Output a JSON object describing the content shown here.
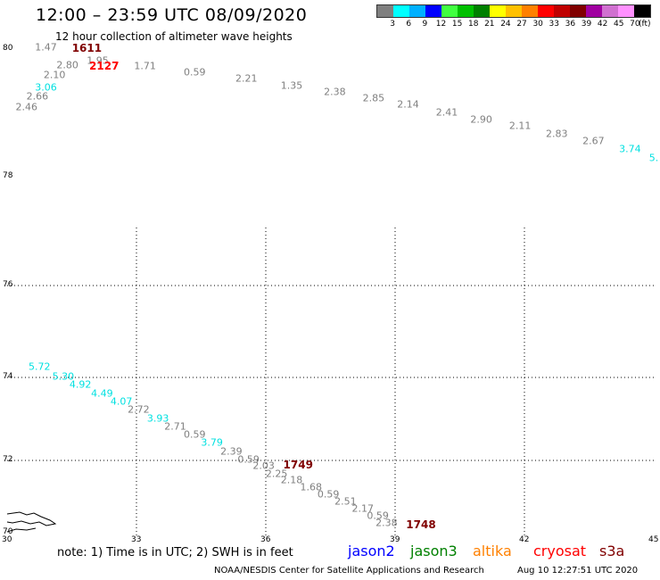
{
  "header": {
    "title": "12:00 – 23:59 UTC 08/09/2020",
    "subtitle": "12 hour collection of altimeter wave heights"
  },
  "color_scale": {
    "unit": "(ft)",
    "bins": [
      {
        "label": "3",
        "color": "#7f7f7f"
      },
      {
        "label": "6",
        "color": "#00ffff"
      },
      {
        "label": "9",
        "color": "#00b0ff"
      },
      {
        "label": "12",
        "color": "#0000ff"
      },
      {
        "label": "15",
        "color": "#40ff40"
      },
      {
        "label": "18",
        "color": "#00c000"
      },
      {
        "label": "21",
        "color": "#008000"
      },
      {
        "label": "24",
        "color": "#ffff00"
      },
      {
        "label": "27",
        "color": "#ffc000"
      },
      {
        "label": "30",
        "color": "#ff8000"
      },
      {
        "label": "33",
        "color": "#ff0000"
      },
      {
        "label": "36",
        "color": "#c00000"
      },
      {
        "label": "39",
        "color": "#800000"
      },
      {
        "label": "42",
        "color": "#a000a0"
      },
      {
        "label": "45",
        "color": "#d070d0"
      },
      {
        "label": "70",
        "color": "#ff90ff"
      },
      {
        "label": "",
        "color": "#000000"
      }
    ]
  },
  "grid": {
    "lat_labels": [
      "80",
      "78",
      "76",
      "74",
      "72",
      "70"
    ],
    "lon_labels": [
      "30",
      "33",
      "36",
      "39",
      "42",
      "45"
    ]
  },
  "measurements": [
    {
      "lon": 30.9,
      "lat": 80.03,
      "value": "1.47",
      "color": "#7f7f7f"
    },
    {
      "lon": 32.1,
      "lat": 79.82,
      "value": "1.95",
      "color": "#7f7f7f"
    },
    {
      "lon": 31.4,
      "lat": 79.75,
      "value": "2.80",
      "color": "#7f7f7f"
    },
    {
      "lon": 33.2,
      "lat": 79.74,
      "value": "1.71",
      "color": "#7f7f7f"
    },
    {
      "lon": 34.35,
      "lat": 79.64,
      "value": "0.59",
      "color": "#7f7f7f"
    },
    {
      "lon": 31.1,
      "lat": 79.6,
      "value": "2.10",
      "color": "#7f7f7f"
    },
    {
      "lon": 35.55,
      "lat": 79.54,
      "value": "2.21",
      "color": "#7f7f7f"
    },
    {
      "lon": 30.9,
      "lat": 79.4,
      "value": "3.06",
      "color": "#00e0e0"
    },
    {
      "lon": 36.6,
      "lat": 79.43,
      "value": "1.35",
      "color": "#7f7f7f"
    },
    {
      "lon": 37.6,
      "lat": 79.33,
      "value": "2.38",
      "color": "#7f7f7f"
    },
    {
      "lon": 30.7,
      "lat": 79.26,
      "value": "2.66",
      "color": "#7f7f7f"
    },
    {
      "lon": 38.5,
      "lat": 79.23,
      "value": "2.85",
      "color": "#7f7f7f"
    },
    {
      "lon": 30.45,
      "lat": 79.09,
      "value": "2.46",
      "color": "#7f7f7f"
    },
    {
      "lon": 39.3,
      "lat": 79.13,
      "value": "2.14",
      "color": "#7f7f7f"
    },
    {
      "lon": 40.2,
      "lat": 79.01,
      "value": "2.41",
      "color": "#7f7f7f"
    },
    {
      "lon": 41.0,
      "lat": 78.9,
      "value": "2.90",
      "color": "#7f7f7f"
    },
    {
      "lon": 41.9,
      "lat": 78.8,
      "value": "2.11",
      "color": "#7f7f7f"
    },
    {
      "lon": 42.75,
      "lat": 78.67,
      "value": "2.83",
      "color": "#7f7f7f"
    },
    {
      "lon": 43.6,
      "lat": 78.56,
      "value": "2.67",
      "color": "#7f7f7f"
    },
    {
      "lon": 44.45,
      "lat": 78.44,
      "value": "3.74",
      "color": "#00e0e0"
    },
    {
      "lon": 45.0,
      "lat": 78.3,
      "value": "5.",
      "color": "#00e0e0"
    },
    {
      "lon": 30.75,
      "lat": 74.24,
      "value": "5.72",
      "color": "#00e0e0"
    },
    {
      "lon": 31.3,
      "lat": 74.02,
      "value": "5.30",
      "color": "#00e0e0"
    },
    {
      "lon": 31.7,
      "lat": 73.82,
      "value": "4.92",
      "color": "#00e0e0"
    },
    {
      "lon": 32.2,
      "lat": 73.62,
      "value": "4.49",
      "color": "#00e0e0"
    },
    {
      "lon": 32.65,
      "lat": 73.42,
      "value": "4.07",
      "color": "#00e0e0"
    },
    {
      "lon": 33.05,
      "lat": 73.22,
      "value": "2.72",
      "color": "#7f7f7f"
    },
    {
      "lon": 33.5,
      "lat": 73.02,
      "value": "3.93",
      "color": "#00e0e0"
    },
    {
      "lon": 33.9,
      "lat": 72.82,
      "value": "2.71",
      "color": "#7f7f7f"
    },
    {
      "lon": 34.35,
      "lat": 72.62,
      "value": "0.59",
      "color": "#7f7f7f"
    },
    {
      "lon": 34.75,
      "lat": 72.42,
      "value": "3.79",
      "color": "#00e0e0"
    },
    {
      "lon": 35.2,
      "lat": 72.22,
      "value": "2.39",
      "color": "#7f7f7f"
    },
    {
      "lon": 35.6,
      "lat": 72.02,
      "value": "0.59",
      "color": "#7f7f7f"
    },
    {
      "lon": 35.95,
      "lat": 71.86,
      "value": "2.03",
      "color": "#7f7f7f"
    },
    {
      "lon": 36.25,
      "lat": 71.64,
      "value": "2.25",
      "color": "#7f7f7f"
    },
    {
      "lon": 36.6,
      "lat": 71.46,
      "value": "2.18",
      "color": "#7f7f7f"
    },
    {
      "lon": 37.05,
      "lat": 71.26,
      "value": "1.68",
      "color": "#7f7f7f"
    },
    {
      "lon": 37.45,
      "lat": 71.06,
      "value": "0.59",
      "color": "#7f7f7f"
    },
    {
      "lon": 37.85,
      "lat": 70.86,
      "value": "2.51",
      "color": "#7f7f7f"
    },
    {
      "lon": 38.25,
      "lat": 70.66,
      "value": "2.17",
      "color": "#7f7f7f"
    },
    {
      "lon": 38.6,
      "lat": 70.46,
      "value": "0.59",
      "color": "#7f7f7f"
    },
    {
      "lon": 38.8,
      "lat": 70.26,
      "value": "2.38",
      "color": "#7f7f7f"
    }
  ],
  "time_labels": [
    {
      "lon": 31.85,
      "lat": 80.02,
      "value": "1611",
      "color": "#800000"
    },
    {
      "lon": 32.25,
      "lat": 79.74,
      "value": "2127",
      "color": "#ff0000"
    },
    {
      "lon": 36.75,
      "lat": 71.88,
      "value": "1749",
      "color": "#800000"
    },
    {
      "lon": 39.6,
      "lat": 70.22,
      "value": "1748",
      "color": "#800000"
    }
  ],
  "footer": {
    "note": "note: 1) Time is in UTC; 2) SWH is in feet",
    "satellites": [
      {
        "name": "jason2",
        "color": "#0000ff"
      },
      {
        "name": "jason3",
        "color": "#008000"
      },
      {
        "name": "altika",
        "color": "#ff8000"
      },
      {
        "name": "cryosat",
        "color": "#ff0000"
      },
      {
        "name": "s3a",
        "color": "#800000"
      }
    ],
    "credit": "NOAA/NESDIS Center for Satellite Applications and Research",
    "timestamp": "Aug 10 12:27:51 UTC 2020"
  }
}
